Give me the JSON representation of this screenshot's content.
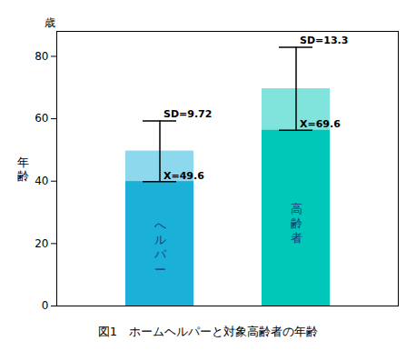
{
  "chart_data": {
    "type": "bar",
    "categories": [
      "へルパー",
      "高齢者"
    ],
    "values": [
      49.6,
      69.6
    ],
    "value_labels": [
      "X=49.6",
      "X=69.6"
    ],
    "data_labels": true,
    "sds": [
      9.72,
      13.3
    ],
    "sd_labels": [
      "SD=9.72",
      "SD=13.3"
    ],
    "colors": [
      "#1ab0d8",
      "#00c8b8"
    ],
    "ylabel": "年\n齢",
    "y_unit": "歳",
    "caption": "図1　ホームヘルパーと対象高齢者の年齢",
    "ylim": [
      0,
      88
    ],
    "yticks": [
      0,
      20,
      40,
      60,
      80
    ],
    "grid": false,
    "tick_labels": "y"
  }
}
